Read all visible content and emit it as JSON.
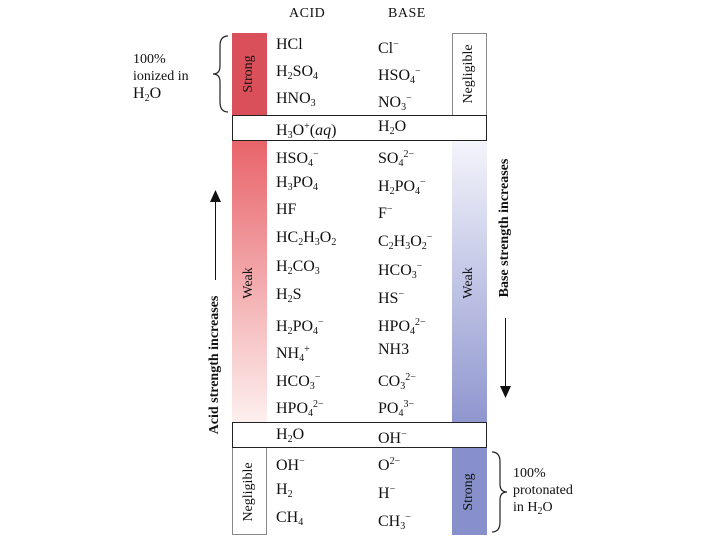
{
  "headers": {
    "acid": "ACID",
    "base": "BASE"
  },
  "acid_column": {
    "strong_label": "Strong",
    "weak_label": "Weak",
    "negligible_label": "Negligible",
    "strong_color": "#d9505a",
    "weak_gradient_top": "#e8646a",
    "weak_gradient_bottom": "#fdf0ef"
  },
  "base_column": {
    "negligible_label": "Negligible",
    "weak_label": "Weak",
    "strong_label": "Strong",
    "weak_gradient_top": "#f4f4fb",
    "weak_gradient_bottom": "#8f96cf",
    "strong_color": "#8890cb"
  },
  "rows": [
    {
      "acid": [
        [
          "HCl",
          ""
        ]
      ],
      "base": [
        [
          "Cl",
          ""
        ],
        [
          "−",
          "sup"
        ]
      ]
    },
    {
      "acid": [
        [
          "H",
          ""
        ],
        [
          "2",
          "sub"
        ],
        [
          "SO",
          ""
        ],
        [
          "4",
          "sub"
        ]
      ],
      "base": [
        [
          "HSO",
          ""
        ],
        [
          "4",
          "sub"
        ],
        [
          "−",
          "sup"
        ]
      ]
    },
    {
      "acid": [
        [
          "HNO",
          ""
        ],
        [
          "3",
          "sub"
        ]
      ],
      "base": [
        [
          "NO",
          ""
        ],
        [
          "3",
          "sub"
        ],
        [
          "−",
          "sup"
        ]
      ]
    },
    {
      "acid": [
        [
          "H",
          ""
        ],
        [
          "3",
          "sub"
        ],
        [
          "O",
          ""
        ],
        [
          "+",
          "sup"
        ],
        [
          "(",
          ""
        ],
        [
          "aq",
          "i"
        ],
        [
          ")",
          ""
        ]
      ],
      "base": [
        [
          "H",
          ""
        ],
        [
          "2",
          "sub"
        ],
        [
          "O",
          ""
        ]
      ]
    },
    {
      "acid": [
        [
          "HSO",
          ""
        ],
        [
          "4",
          "sub"
        ],
        [
          "−",
          "sup"
        ]
      ],
      "base": [
        [
          "SO",
          ""
        ],
        [
          "4",
          "sub"
        ],
        [
          "2−",
          "sup"
        ]
      ]
    },
    {
      "acid": [
        [
          "H",
          ""
        ],
        [
          "3",
          "sub"
        ],
        [
          "PO",
          ""
        ],
        [
          "4",
          "sub"
        ]
      ],
      "base": [
        [
          "H",
          ""
        ],
        [
          "2",
          "sub"
        ],
        [
          "PO",
          ""
        ],
        [
          "4",
          "sub"
        ],
        [
          "−",
          "sup"
        ]
      ]
    },
    {
      "acid": [
        [
          "HF",
          ""
        ]
      ],
      "base": [
        [
          "F",
          ""
        ],
        [
          "−",
          "sup"
        ]
      ]
    },
    {
      "acid": [
        [
          "HC",
          ""
        ],
        [
          "2",
          "sub"
        ],
        [
          "H",
          ""
        ],
        [
          "3",
          "sub"
        ],
        [
          "O",
          ""
        ],
        [
          "2",
          "sub"
        ]
      ],
      "base": [
        [
          "C",
          ""
        ],
        [
          "2",
          "sub"
        ],
        [
          "H",
          ""
        ],
        [
          "3",
          "sub"
        ],
        [
          "O",
          ""
        ],
        [
          "2",
          "sub"
        ],
        [
          "−",
          "sup"
        ]
      ]
    },
    {
      "acid": [
        [
          "H",
          ""
        ],
        [
          "2",
          "sub"
        ],
        [
          "CO",
          ""
        ],
        [
          "3",
          "sub"
        ]
      ],
      "base": [
        [
          "HCO",
          ""
        ],
        [
          "3",
          "sub"
        ],
        [
          "−",
          "sup"
        ]
      ]
    },
    {
      "acid": [
        [
          "H",
          ""
        ],
        [
          "2",
          "sub"
        ],
        [
          "S",
          ""
        ]
      ],
      "base": [
        [
          "HS",
          ""
        ],
        [
          "−",
          "sup"
        ]
      ]
    },
    {
      "acid": [
        [
          "H",
          ""
        ],
        [
          "2",
          "sub"
        ],
        [
          "PO",
          ""
        ],
        [
          "4",
          "sub"
        ],
        [
          "−",
          "sup"
        ]
      ],
      "base": [
        [
          "HPO",
          ""
        ],
        [
          "4",
          "sub"
        ],
        [
          "2−",
          "sup"
        ]
      ]
    },
    {
      "acid": [
        [
          "NH",
          ""
        ],
        [
          "4",
          "sub"
        ],
        [
          "+",
          "sup"
        ]
      ],
      "base": [
        [
          "NH",
          ""
        ],
        [
          "3",
          ""
        ]
      ]
    },
    {
      "acid": [
        [
          "HCO",
          ""
        ],
        [
          "3",
          "sub"
        ],
        [
          "−",
          "sup"
        ]
      ],
      "base": [
        [
          "CO",
          ""
        ],
        [
          "3",
          "sub"
        ],
        [
          "2−",
          "sup"
        ]
      ]
    },
    {
      "acid": [
        [
          "HPO",
          ""
        ],
        [
          "4",
          "sub"
        ],
        [
          "2−",
          "sup"
        ]
      ],
      "base": [
        [
          "PO",
          ""
        ],
        [
          "4",
          "sub"
        ],
        [
          "3−",
          "sup"
        ]
      ]
    },
    {
      "acid": [
        [
          "H",
          ""
        ],
        [
          "2",
          "sub"
        ],
        [
          "O",
          ""
        ]
      ],
      "base": [
        [
          "OH",
          ""
        ],
        [
          "−",
          "sup"
        ]
      ]
    },
    {
      "acid": [
        [
          "OH",
          ""
        ],
        [
          "−",
          "sup"
        ]
      ],
      "base": [
        [
          "O",
          ""
        ],
        [
          "2−",
          "sup"
        ]
      ]
    },
    {
      "acid": [
        [
          "H",
          ""
        ],
        [
          "2",
          "sub"
        ]
      ],
      "base": [
        [
          "H",
          ""
        ],
        [
          "−",
          "sup"
        ]
      ]
    },
    {
      "acid": [
        [
          "CH",
          ""
        ],
        [
          "4",
          "sub"
        ]
      ],
      "base": [
        [
          "CH",
          ""
        ],
        [
          "3",
          "sub"
        ],
        [
          "−",
          "sup"
        ]
      ]
    }
  ],
  "axis_labels": {
    "acid_strength": "Acid strength increases",
    "base_strength": "Base strength increases"
  },
  "notes": {
    "ionized_line1": "100%",
    "ionized_line2": "ionized in",
    "ionized_line3_main": "H",
    "ionized_line3_sub": "2",
    "ionized_line3_end": "O",
    "protonated_line1": "100%",
    "protonated_line2": "protonated",
    "protonated_line3_prefix": "in H",
    "protonated_line3_sub": "2",
    "protonated_line3_end": "O"
  }
}
